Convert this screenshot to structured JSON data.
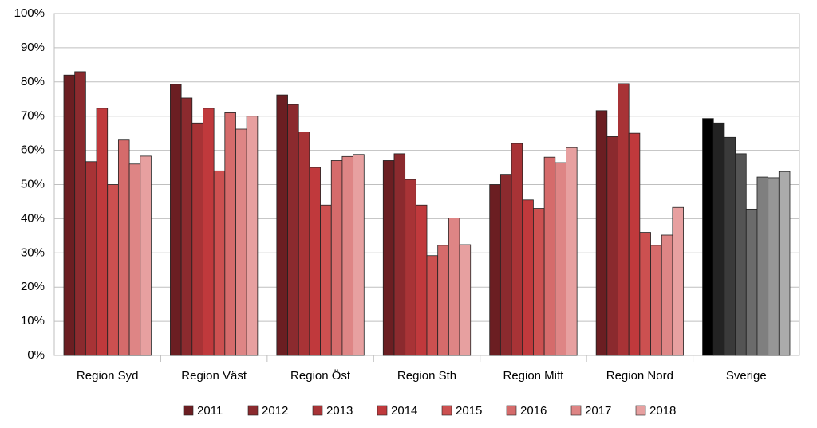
{
  "chart_data": {
    "type": "bar",
    "categories": [
      "Region Syd",
      "Region Väst",
      "Region Öst",
      "Region Sth",
      "Region Mitt",
      "Region Nord",
      "Sverige"
    ],
    "series": [
      {
        "name": "2011",
        "color": "#6b1e22",
        "last_category_color": "#000000",
        "values": [
          82,
          79.3,
          76.2,
          57,
          50,
          71.6,
          69.3
        ]
      },
      {
        "name": "2012",
        "color": "#8b2a2e",
        "last_category_color": "#232323",
        "values": [
          83,
          75.3,
          73.4,
          59,
          53,
          64,
          68
        ]
      },
      {
        "name": "2013",
        "color": "#a83336",
        "last_category_color": "#3a3a3a",
        "values": [
          56.7,
          68,
          65.4,
          51.5,
          62,
          79.5,
          63.8
        ]
      },
      {
        "name": "2014",
        "color": "#c0393c",
        "last_category_color": "#545454",
        "values": [
          72.3,
          72.3,
          55,
          44,
          45.5,
          65,
          59
        ]
      },
      {
        "name": "2015",
        "color": "#cc5050",
        "last_category_color": "#6b6b6b",
        "values": [
          50,
          54,
          44,
          29.2,
          43,
          36,
          42.8
        ]
      },
      {
        "name": "2016",
        "color": "#d56b6b",
        "last_category_color": "#7f7f7f",
        "values": [
          63,
          71,
          57,
          32.2,
          58,
          32.2,
          52.2
        ]
      },
      {
        "name": "2017",
        "color": "#de8585",
        "last_category_color": "#969696",
        "values": [
          56,
          66.2,
          58.2,
          40.2,
          56.4,
          35.2,
          52
        ]
      },
      {
        "name": "2018",
        "color": "#e7a0a0",
        "last_category_color": "#ababab",
        "values": [
          58.3,
          70,
          58.8,
          32.4,
          60.8,
          43.3,
          53.8
        ]
      }
    ],
    "ylim": [
      0,
      100
    ],
    "yticks": [
      {
        "value": 0,
        "label": "0%"
      },
      {
        "value": 10,
        "label": "10%"
      },
      {
        "value": 20,
        "label": "20%"
      },
      {
        "value": 30,
        "label": "30%"
      },
      {
        "value": 40,
        "label": "40%"
      },
      {
        "value": 50,
        "label": "50%"
      },
      {
        "value": 60,
        "label": "60%"
      },
      {
        "value": 70,
        "label": "70%"
      },
      {
        "value": 80,
        "label": "80%"
      },
      {
        "value": 90,
        "label": "90%"
      },
      {
        "value": 100,
        "label": "100%"
      }
    ],
    "grid": true,
    "legend": "bottom"
  }
}
